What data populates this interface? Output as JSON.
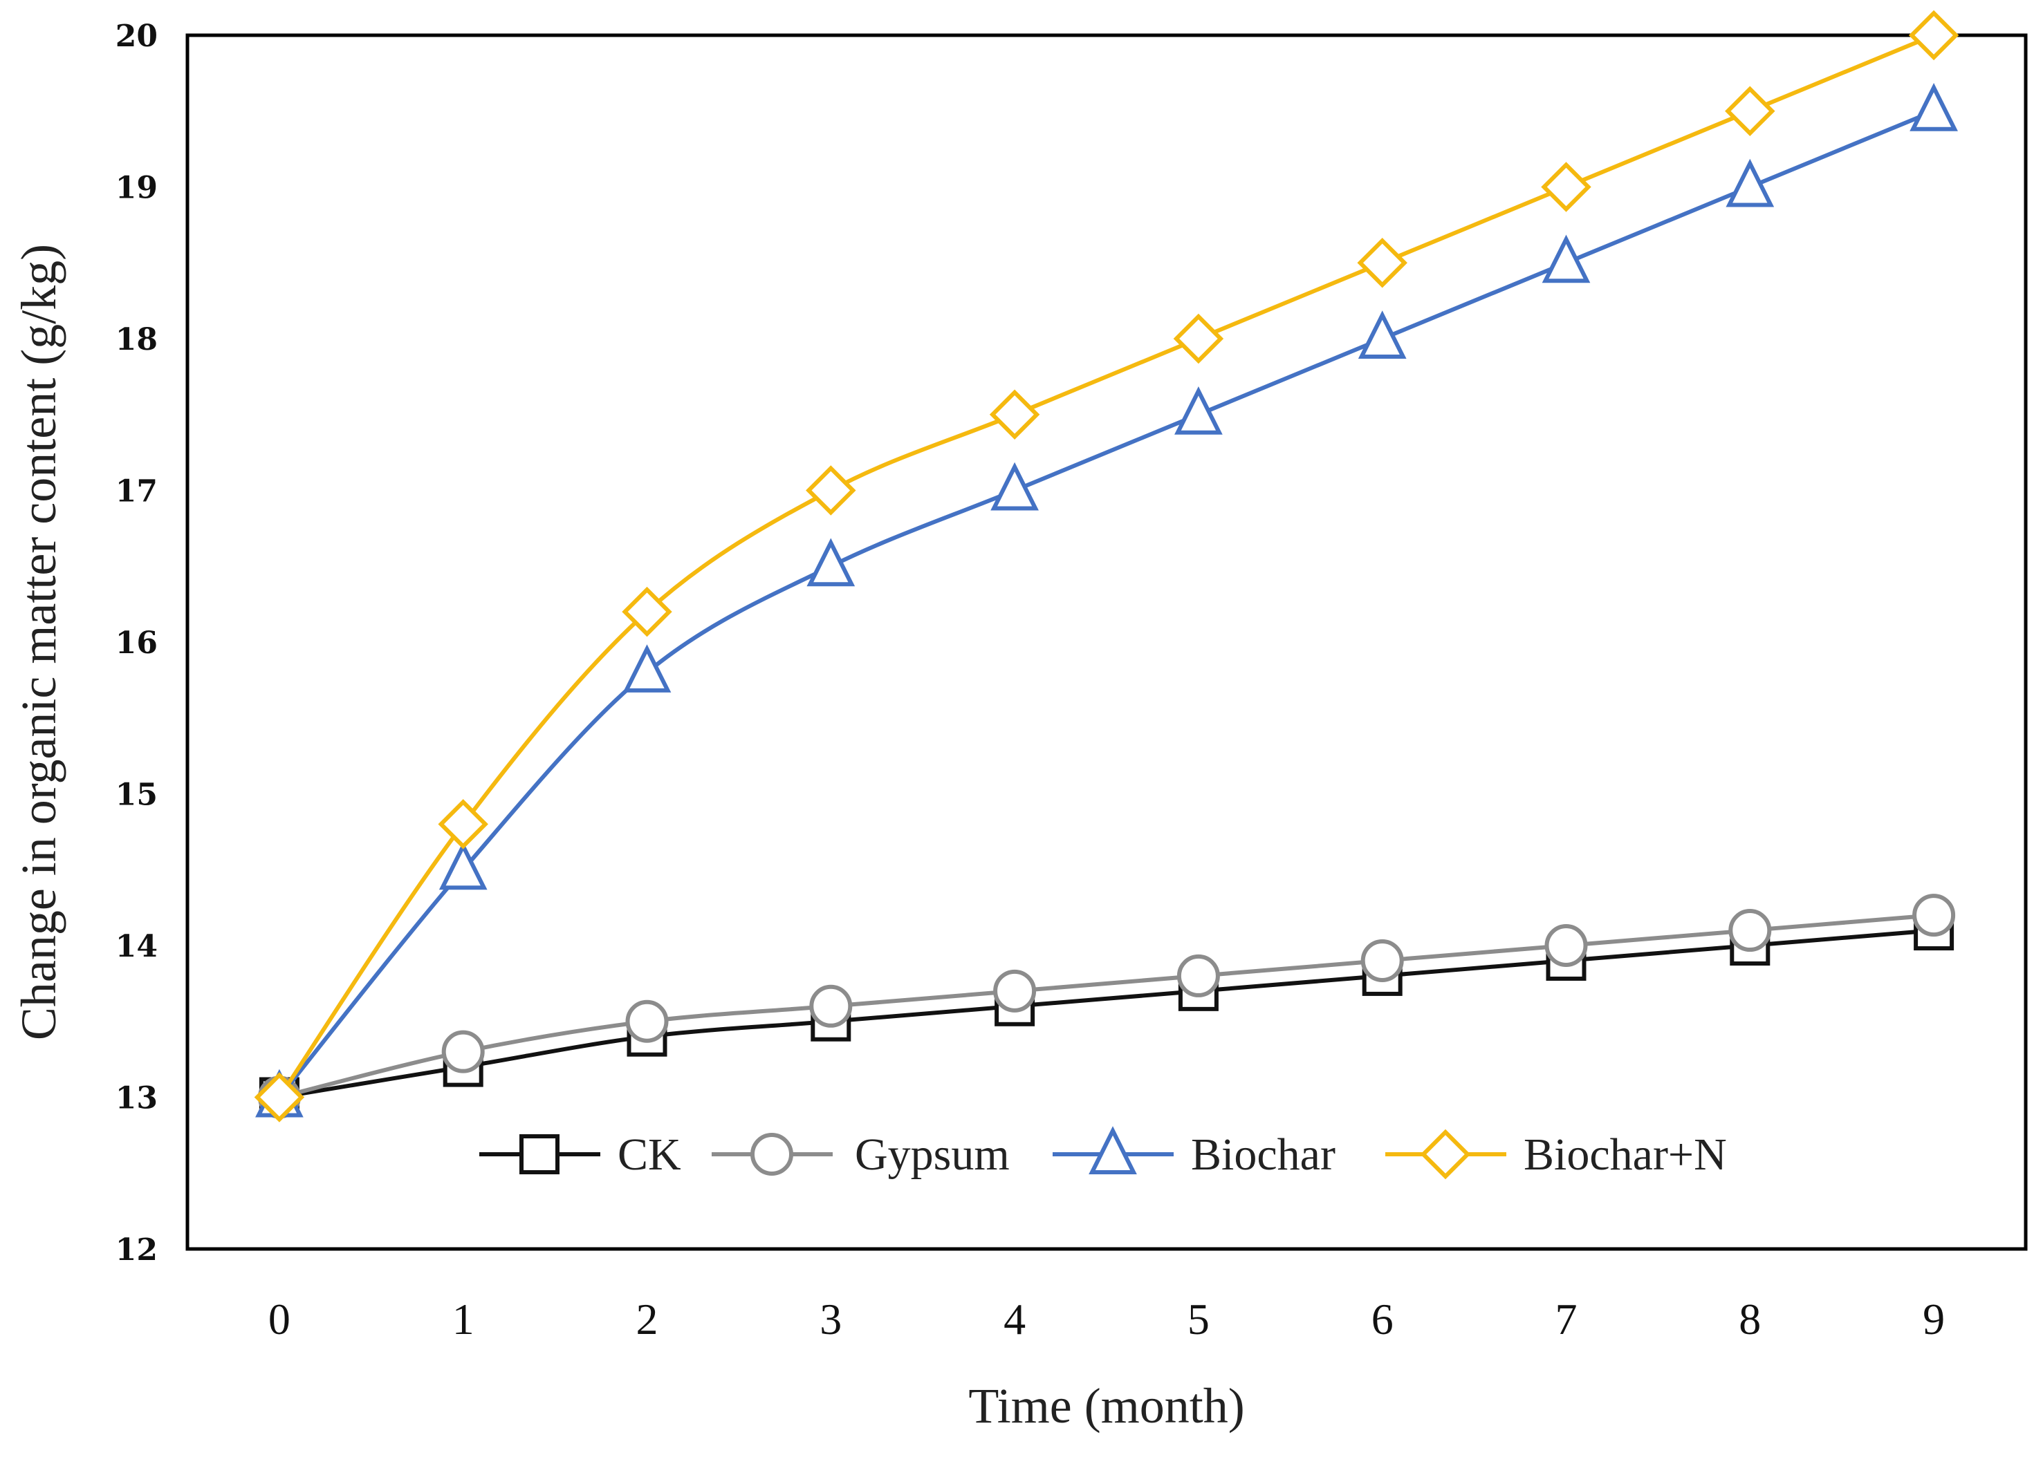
{
  "chart_data": {
    "type": "line",
    "title": "",
    "xlabel": "Time (month)",
    "ylabel": "Change in organic matter content (g/kg)",
    "x": [
      0,
      1,
      2,
      3,
      4,
      5,
      6,
      7,
      8,
      9
    ],
    "xlim": [
      -0.5,
      9.5
    ],
    "ylim": [
      12,
      20
    ],
    "xticks": [
      "0",
      "1",
      "2",
      "3",
      "4",
      "5",
      "6",
      "7",
      "8",
      "9"
    ],
    "yticks": [
      "12",
      "13",
      "14",
      "15",
      "16",
      "17",
      "18",
      "19",
      "20"
    ],
    "grid": false,
    "legend_position": "bottom-inside",
    "series": [
      {
        "name": "CK",
        "color": "#111111",
        "marker": "square",
        "values": [
          13.0,
          13.2,
          13.4,
          13.5,
          13.6,
          13.7,
          13.8,
          13.9,
          14.0,
          14.1
        ]
      },
      {
        "name": "Gypsum",
        "color": "#8c8c8c",
        "marker": "circle",
        "values": [
          13.0,
          13.3,
          13.5,
          13.6,
          13.7,
          13.8,
          13.9,
          14.0,
          14.1,
          14.2
        ]
      },
      {
        "name": "Biochar",
        "color": "#4472c4",
        "marker": "triangle",
        "values": [
          13.0,
          14.5,
          15.8,
          16.5,
          17.0,
          17.5,
          18.0,
          18.5,
          19.0,
          19.5
        ]
      },
      {
        "name": "Biochar+N",
        "color": "#f5b90f",
        "marker": "diamond",
        "values": [
          13.0,
          14.8,
          16.2,
          17.0,
          17.5,
          18.0,
          18.5,
          19.0,
          19.5,
          20.0
        ]
      }
    ]
  }
}
